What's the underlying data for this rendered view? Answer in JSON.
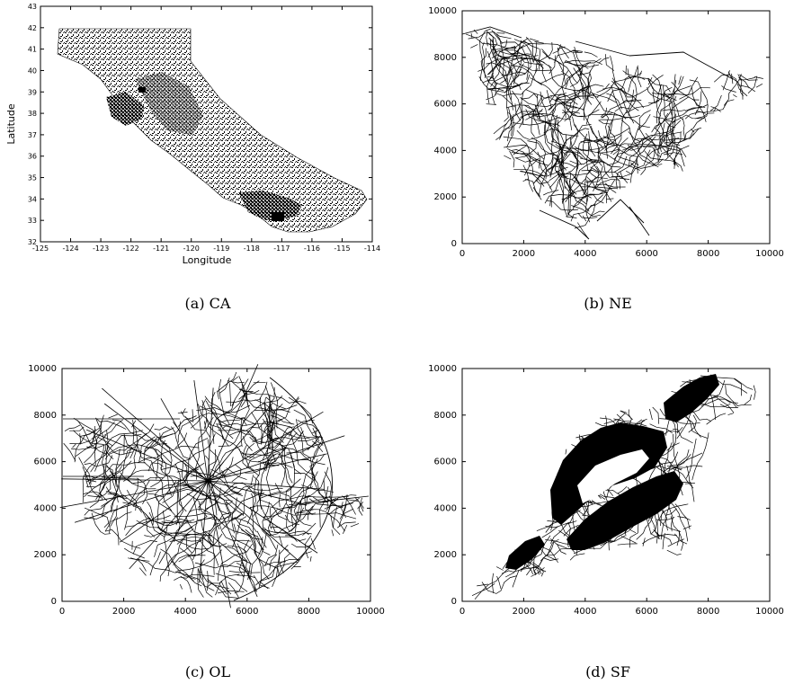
{
  "figures": {
    "a": {
      "caption": "(a)  CA",
      "xlabel": "Longitude",
      "ylabel": "Latitude",
      "x_ticks": [
        "-125",
        "-124",
        "-123",
        "-122",
        "-121",
        "-120",
        "-119",
        "-118",
        "-117",
        "-116",
        "-115",
        "-114"
      ],
      "y_ticks": [
        "32",
        "33",
        "34",
        "35",
        "36",
        "37",
        "38",
        "39",
        "40",
        "41",
        "42",
        "43"
      ]
    },
    "b": {
      "caption": "(b)  NE",
      "x_ticks": [
        "0",
        "2000",
        "4000",
        "6000",
        "8000",
        "10000"
      ],
      "y_ticks": [
        "0",
        "2000",
        "4000",
        "6000",
        "8000",
        "10000"
      ]
    },
    "c": {
      "caption": "(c)  OL",
      "x_ticks": [
        "0",
        "2000",
        "4000",
        "6000",
        "8000",
        "10000"
      ],
      "y_ticks": [
        "0",
        "2000",
        "4000",
        "6000",
        "8000",
        "10000"
      ]
    },
    "d": {
      "caption": "(d)  SF",
      "x_ticks": [
        "0",
        "2000",
        "4000",
        "6000",
        "8000",
        "10000"
      ],
      "y_ticks": [
        "0",
        "2000",
        "4000",
        "6000",
        "8000",
        "10000"
      ]
    }
  }
}
